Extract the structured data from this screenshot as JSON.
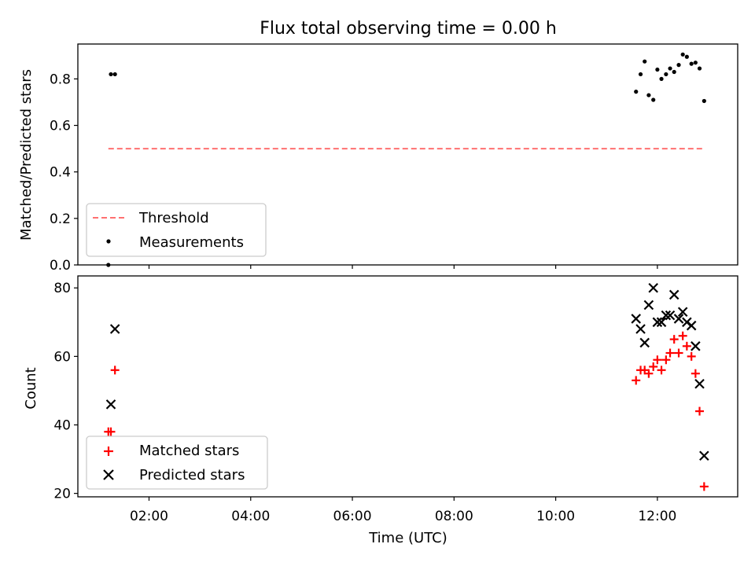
{
  "figure": {
    "title": "Flux total observing time = 0.00 h"
  },
  "chart_data": [
    {
      "type": "scatter",
      "panel": "top",
      "title": "Flux total observing time = 0.00 h",
      "xlabel": "",
      "ylabel": "Matched/Predicted stars",
      "ylim": [
        0,
        0.95
      ],
      "xlim_hours": [
        0.6,
        13.58
      ],
      "yticks": [
        "0.0",
        "0.2",
        "0.4",
        "0.6",
        "0.8"
      ],
      "yticks_values": [
        0,
        0.2,
        0.4,
        0.6,
        0.8
      ],
      "legend": {
        "placement": "lower left",
        "entries": [
          "Threshold",
          "Measurements"
        ]
      },
      "threshold": {
        "name": "Threshold",
        "y": 0.5,
        "x_range_hours": [
          1.2,
          12.92
        ],
        "color": "#ff7070",
        "style": "dashed"
      },
      "series": [
        {
          "name": "Measurements",
          "color": "#000000",
          "marker": "dot",
          "x_hours": [
            1.2,
            1.25,
            1.33,
            11.58,
            11.67,
            11.75,
            11.83,
            11.92,
            12.0,
            12.08,
            12.17,
            12.25,
            12.33,
            12.42,
            12.5,
            12.58,
            12.67,
            12.75,
            12.83,
            12.92
          ],
          "y": [
            0.0,
            0.82,
            0.82,
            0.745,
            0.82,
            0.875,
            0.73,
            0.71,
            0.84,
            0.8,
            0.82,
            0.845,
            0.83,
            0.86,
            0.905,
            0.895,
            0.865,
            0.87,
            0.845,
            0.705
          ]
        }
      ]
    },
    {
      "type": "scatter",
      "panel": "bottom",
      "xlabel": "Time (UTC)",
      "ylabel": "Count",
      "ylim": [
        19,
        83.5
      ],
      "xlim_hours": [
        0.6,
        13.58
      ],
      "yticks": [
        "20",
        "40",
        "60",
        "80"
      ],
      "yticks_values": [
        20,
        40,
        60,
        80
      ],
      "xticks": [
        "02:00",
        "04:00",
        "06:00",
        "08:00",
        "10:00",
        "12:00"
      ],
      "xticks_hours": [
        2,
        4,
        6,
        8,
        10,
        12
      ],
      "legend": {
        "placement": "lower left",
        "entries": [
          "Matched stars",
          "Predicted stars"
        ]
      },
      "series": [
        {
          "name": "Matched stars",
          "color": "#ff0000",
          "marker": "plus",
          "x_hours": [
            1.2,
            1.25,
            1.33,
            11.58,
            11.67,
            11.75,
            11.83,
            11.92,
            12.0,
            12.08,
            12.17,
            12.25,
            12.33,
            12.42,
            12.5,
            12.58,
            12.67,
            12.75,
            12.83,
            12.92
          ],
          "y": [
            38,
            38,
            56,
            53,
            56,
            56,
            55,
            57,
            59,
            56,
            59,
            61,
            65,
            61,
            66,
            63,
            60,
            55,
            44,
            22
          ]
        },
        {
          "name": "Predicted stars",
          "color": "#000000",
          "marker": "x",
          "x_hours": [
            1.25,
            1.33,
            11.58,
            11.67,
            11.75,
            11.83,
            11.92,
            12.0,
            12.08,
            12.17,
            12.25,
            12.33,
            12.42,
            12.5,
            12.58,
            12.67,
            12.75,
            12.83,
            12.92
          ],
          "y": [
            46,
            68,
            71,
            68,
            64,
            75,
            80,
            70,
            70,
            72,
            72,
            78,
            71,
            73,
            70,
            69,
            63,
            52,
            31
          ]
        }
      ]
    }
  ]
}
